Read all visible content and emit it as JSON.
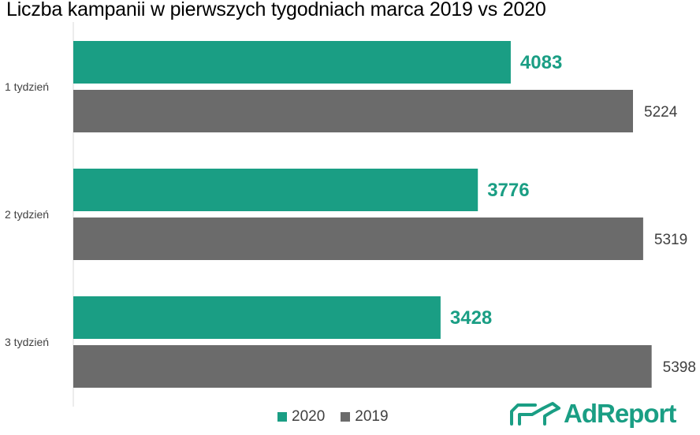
{
  "colors": {
    "s2020": "#1a9e84",
    "s2019": "#6b6b6b",
    "axis": "#d9d9d9"
  },
  "chart_data": {
    "type": "bar",
    "orientation": "horizontal",
    "title": "Liczba kampanii w pierwszych tygodniach marca 2019 vs 2020",
    "categories": [
      "1 tydzień",
      "2 tydzień",
      "3 tydzień"
    ],
    "series": [
      {
        "name": "2020",
        "values": [
          4083,
          3776,
          3428
        ]
      },
      {
        "name": "2019",
        "values": [
          5224,
          5319,
          5398
        ]
      }
    ],
    "xlim": [
      0,
      5800
    ],
    "legend": "bottom",
    "grid": false
  },
  "brand": {
    "name": "AdReport",
    "icon": "horse-trailer-icon"
  }
}
